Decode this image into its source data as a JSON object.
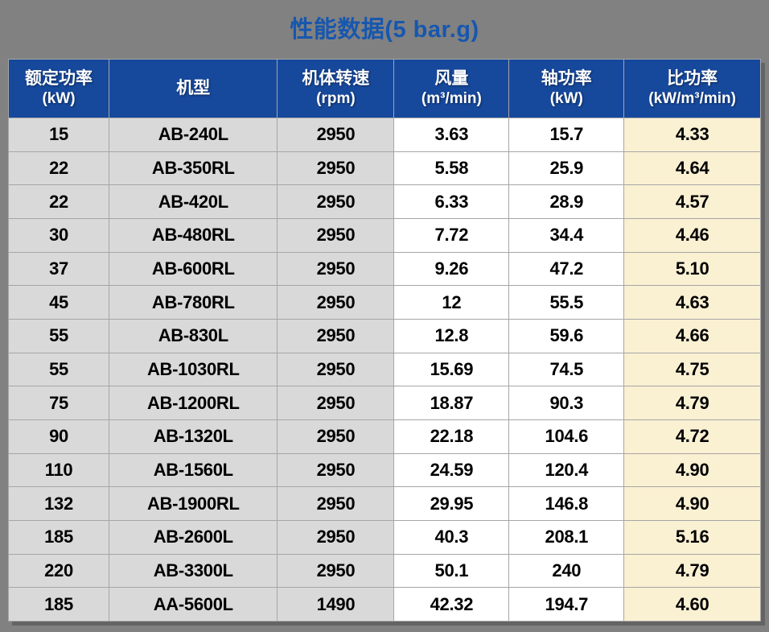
{
  "title": "性能数据(5 bar.g)",
  "colors": {
    "page_bg": "#818181",
    "title": "#1757AE",
    "header_bg": "#16489C",
    "header_text": "#FFFFFF",
    "gridline": "#A6A6A6",
    "col_gray": "#D9D9D9",
    "col_white": "#FFFFFF",
    "col_cream": "#FAF0D2",
    "cell_text": "#000000"
  },
  "table": {
    "headers": [
      {
        "label": "额定功率",
        "unit": "(kW)"
      },
      {
        "label": "机型",
        "unit": ""
      },
      {
        "label": "机体转速",
        "unit": "(rpm)"
      },
      {
        "label": "风量",
        "unit": "(m³/min)"
      },
      {
        "label": "轴功率",
        "unit": "(kW)"
      },
      {
        "label": "比功率",
        "unit": "(kW/m³/min)"
      }
    ],
    "column_styles": [
      "gray",
      "gray",
      "gray",
      "white",
      "white",
      "cream"
    ],
    "rows": [
      [
        "15",
        "AB-240L",
        "2950",
        "3.63",
        "15.7",
        "4.33"
      ],
      [
        "22",
        "AB-350RL",
        "2950",
        "5.58",
        "25.9",
        "4.64"
      ],
      [
        "22",
        "AB-420L",
        "2950",
        "6.33",
        "28.9",
        "4.57"
      ],
      [
        "30",
        "AB-480RL",
        "2950",
        "7.72",
        "34.4",
        "4.46"
      ],
      [
        "37",
        "AB-600RL",
        "2950",
        "9.26",
        "47.2",
        "5.10"
      ],
      [
        "45",
        "AB-780RL",
        "2950",
        "12",
        "55.5",
        "4.63"
      ],
      [
        "55",
        "AB-830L",
        "2950",
        "12.8",
        "59.6",
        "4.66"
      ],
      [
        "55",
        "AB-1030RL",
        "2950",
        "15.69",
        "74.5",
        "4.75"
      ],
      [
        "75",
        "AB-1200RL",
        "2950",
        "18.87",
        "90.3",
        "4.79"
      ],
      [
        "90",
        "AB-1320L",
        "2950",
        "22.18",
        "104.6",
        "4.72"
      ],
      [
        "110",
        "AB-1560L",
        "2950",
        "24.59",
        "120.4",
        "4.90"
      ],
      [
        "132",
        "AB-1900RL",
        "2950",
        "29.95",
        "146.8",
        "4.90"
      ],
      [
        "185",
        "AB-2600L",
        "2950",
        "40.3",
        "208.1",
        "5.16"
      ],
      [
        "220",
        "AB-3300L",
        "2950",
        "50.1",
        "240",
        "4.79"
      ],
      [
        "185",
        "AA-5600L",
        "1490",
        "42.32",
        "194.7",
        "4.60"
      ]
    ]
  }
}
